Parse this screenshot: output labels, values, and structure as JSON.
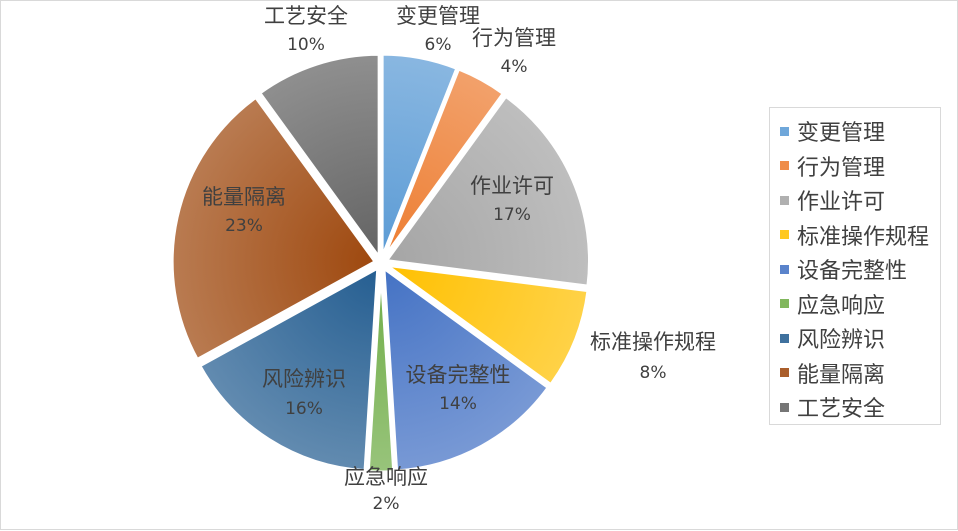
{
  "chart_data": {
    "type": "pie",
    "title": "",
    "exploded": true,
    "legend_position": "right",
    "slices": [
      {
        "label": "变更管理",
        "value": 6,
        "pct_label": "6%",
        "color": "#5b9bd5"
      },
      {
        "label": "行为管理",
        "value": 4,
        "pct_label": "4%",
        "color": "#ed7d31"
      },
      {
        "label": "作业许可",
        "value": 17,
        "pct_label": "17%",
        "color": "#a5a5a5"
      },
      {
        "label": "标准操作规程",
        "value": 8,
        "pct_label": "8%",
        "color": "#ffc000"
      },
      {
        "label": "设备完整性",
        "value": 14,
        "pct_label": "14%",
        "color": "#4472c4"
      },
      {
        "label": "应急响应",
        "value": 2,
        "pct_label": "2%",
        "color": "#70ad47"
      },
      {
        "label": "风险辨识",
        "value": 16,
        "pct_label": "16%",
        "color": "#255e91"
      },
      {
        "label": "能量隔离",
        "value": 23,
        "pct_label": "23%",
        "color": "#9e480e"
      },
      {
        "label": "工艺安全",
        "value": 10,
        "pct_label": "10%",
        "color": "#636363"
      }
    ]
  }
}
